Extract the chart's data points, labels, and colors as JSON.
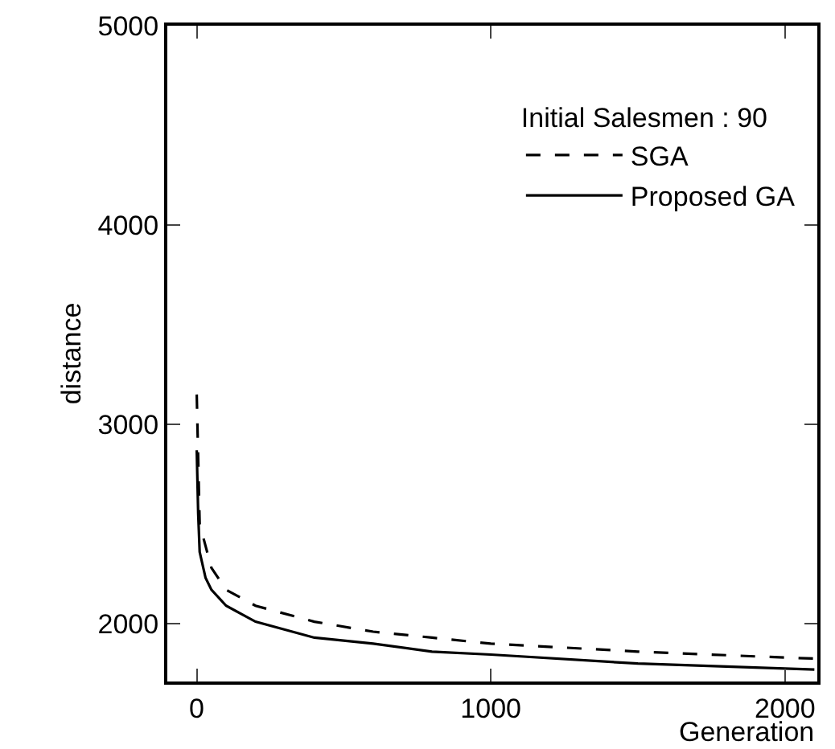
{
  "chart_data": {
    "type": "line",
    "xlabel": "Generation",
    "ylabel": "distance",
    "legend_title": "Initial Salesmen : 90",
    "legend": "top right",
    "grid": false,
    "xlim": [
      -100,
      2110
    ],
    "ylim": [
      1710,
      5000
    ],
    "xticks": [
      0,
      1000,
      2000
    ],
    "yticks": [
      2000,
      3000,
      4000,
      5000
    ],
    "series": [
      {
        "name": "SGA",
        "color": "#000000",
        "line_style": "dashed",
        "x": [
          0,
          10,
          30,
          50,
          100,
          200,
          400,
          600,
          800,
          1000,
          1500,
          2000,
          2100
        ],
        "values": [
          3150,
          2500,
          2390,
          2280,
          2170,
          2090,
          2010,
          1960,
          1930,
          1900,
          1860,
          1830,
          1825
        ]
      },
      {
        "name": "Proposed GA",
        "color": "#000000",
        "line_style": "solid",
        "x": [
          0,
          5,
          10,
          30,
          50,
          100,
          200,
          400,
          600,
          800,
          1000,
          1500,
          2000,
          2100
        ],
        "values": [
          2870,
          2550,
          2360,
          2230,
          2170,
          2090,
          2010,
          1930,
          1900,
          1860,
          1845,
          1800,
          1775,
          1770
        ]
      }
    ]
  }
}
